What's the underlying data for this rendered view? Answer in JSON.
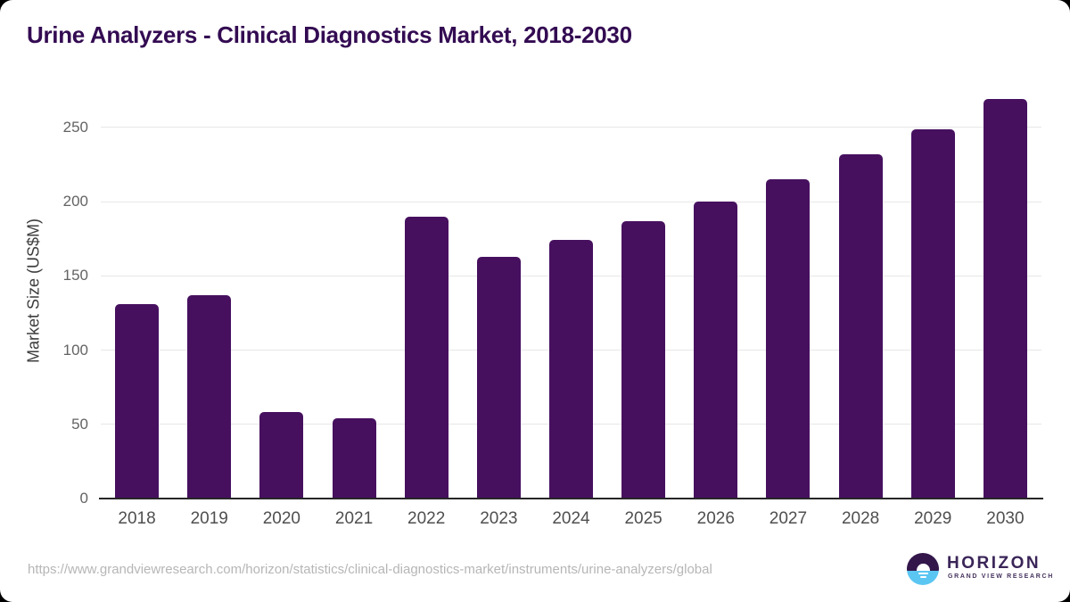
{
  "title": "Urine Analyzers - Clinical Diagnostics Market, 2018-2030",
  "footer": {
    "source_url": "https://www.grandviewresearch.com/horizon/statistics/clinical-diagnostics-market/instruments/urine-analyzers/global",
    "logo": {
      "name": "HORIZON",
      "subtitle": "GRAND VIEW RESEARCH"
    }
  },
  "colors": {
    "bar": "#46105F",
    "title_text": "#330B52",
    "gridline": "#E7E7E7",
    "axis_line": "#262626",
    "y_tick_text": "#636363",
    "x_tick_text": "#4F4F4F",
    "url_text": "#B6B6B6",
    "logo_purple": "#33174B",
    "logo_blue": "#5BC6F2"
  },
  "chart_data": {
    "type": "bar",
    "title": "Urine Analyzers - Clinical Diagnostics Market, 2018-2030",
    "categories": [
      "2018",
      "2019",
      "2020",
      "2021",
      "2022",
      "2023",
      "2024",
      "2025",
      "2026",
      "2027",
      "2028",
      "2029",
      "2030"
    ],
    "values": [
      131,
      137,
      58,
      54,
      190,
      163,
      174,
      187,
      200,
      215,
      232,
      249,
      269
    ],
    "xlabel": "",
    "ylabel": "Market Size (US$M)",
    "ylim": [
      0,
      280
    ],
    "yticks": [
      0,
      50,
      100,
      150,
      200,
      250
    ],
    "grid": true,
    "legend": false,
    "bar_color": "#46105F"
  }
}
